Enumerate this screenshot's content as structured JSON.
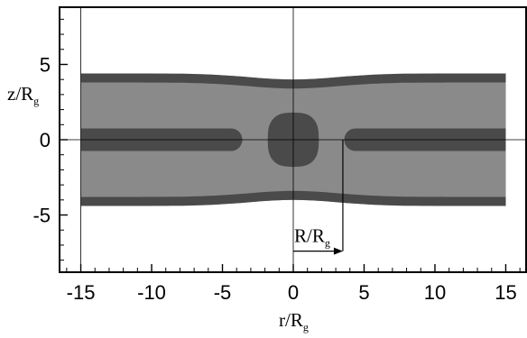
{
  "chart_data": {
    "type": "contour",
    "title": "",
    "xlabel": "r/R",
    "xlabel_subscript": "g",
    "ylabel": "z/R",
    "ylabel_subscript": "g",
    "xlim": [
      -16.5,
      16.5
    ],
    "ylim": [
      -8.8,
      8.8
    ],
    "xticks": [
      -15,
      -10,
      -5,
      0,
      5,
      10,
      15
    ],
    "yticks": [
      5,
      0,
      -5
    ],
    "xtick_labels": [
      "-15",
      "-10",
      "-5",
      "0",
      "5",
      "10",
      "15"
    ],
    "ytick_labels": [
      "5",
      "0",
      "-5"
    ],
    "grid_x": [
      -15,
      0
    ],
    "grid_y": [
      0
    ],
    "domain_r": [
      -15,
      15
    ],
    "outer_half_height_far": 4.4,
    "outer_half_height_center": 4.0,
    "boundary_band_thickness": 0.6,
    "midplane_band_half_thickness": 0.75,
    "midplane_band_inner_tip_r": 3.6,
    "central_blob_half_width": 1.8,
    "central_blob_half_height": 1.8,
    "annotation": {
      "label": "R/R",
      "label_subscript": "g",
      "arrow_from_r": 0,
      "arrow_to_r": 3.5,
      "arrow_z": -7.4
    },
    "colors": {
      "background": "#ffffff",
      "fill_light": "#8a8a8a",
      "fill_dark": "#4a4a4a",
      "axis": "#000000",
      "grid": "#000000"
    }
  }
}
